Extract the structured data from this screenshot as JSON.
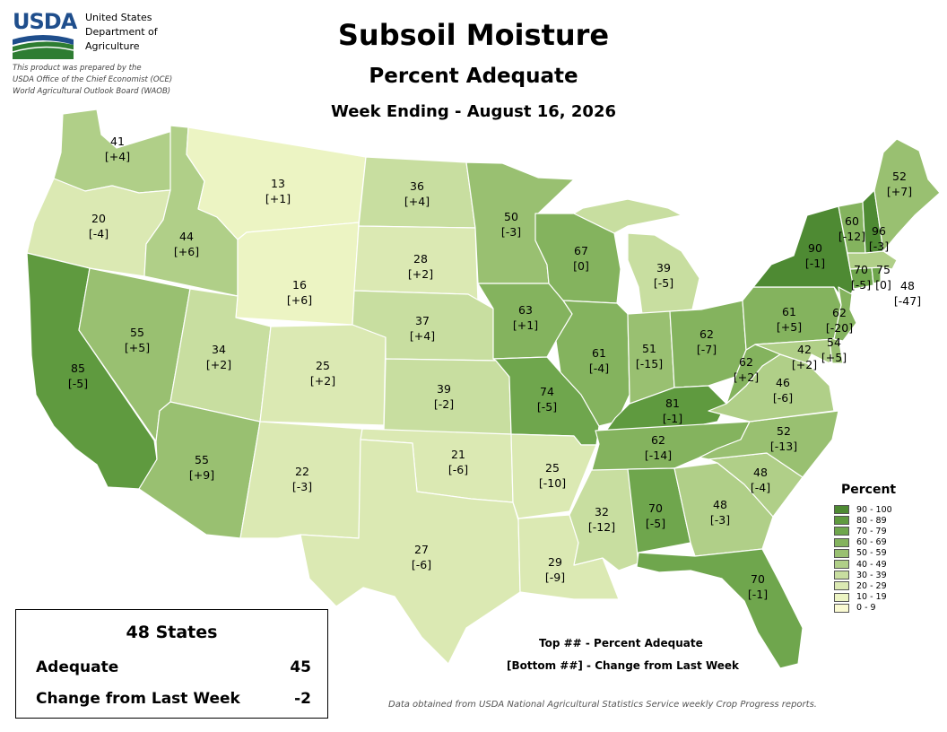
{
  "agency": {
    "logo_text": "USDA",
    "name_lines": [
      "United States",
      "Department of",
      "Agriculture"
    ],
    "prepared_lines": [
      "This product was prepared by the",
      "USDA Office of the Chief Economist (OCE)",
      "World Agricultural Outlook Board (WAOB)"
    ]
  },
  "titles": {
    "main": "Subsoil Moisture",
    "subtitle": "Percent Adequate",
    "week": "Week Ending - August 16, 2026"
  },
  "legend": {
    "title": "Percent",
    "bins": [
      {
        "label": "90 - 100",
        "color": "#4e8a33"
      },
      {
        "label": "80 - 89",
        "color": "#5f9a3f"
      },
      {
        "label": "70 - 79",
        "color": "#6fa64d"
      },
      {
        "label": "60 - 69",
        "color": "#84b35e"
      },
      {
        "label": "50 - 59",
        "color": "#99c071"
      },
      {
        "label": "40 - 49",
        "color": "#b0cf88"
      },
      {
        "label": "30 - 39",
        "color": "#c8dea0"
      },
      {
        "label": "20 - 29",
        "color": "#dbe9b3"
      },
      {
        "label": "10 - 19",
        "color": "#ecf4c3"
      },
      {
        "label": "0 - 9",
        "color": "#fafad2"
      }
    ]
  },
  "summary": {
    "title": "48 States",
    "rows": [
      {
        "label": "Adequate",
        "value": "45"
      },
      {
        "label": "Change from Last Week",
        "value": "-2"
      }
    ]
  },
  "notes": {
    "top": "Top ## - Percent Adequate",
    "bottom": "[Bottom ##] - Change from Last Week"
  },
  "source": "Data obtained from USDA National Agricultural Statistics Service weekly Crop Progress reports.",
  "states": [
    {
      "id": "WA",
      "value": "41",
      "change": "[+4]"
    },
    {
      "id": "OR",
      "value": "20",
      "change": "[-4]"
    },
    {
      "id": "CA",
      "value": "85",
      "change": "[-5]"
    },
    {
      "id": "ID",
      "value": "44",
      "change": "[+6]"
    },
    {
      "id": "NV",
      "value": "55",
      "change": "[+5]"
    },
    {
      "id": "MT",
      "value": "13",
      "change": "[+1]"
    },
    {
      "id": "WY",
      "value": "16",
      "change": "[+6]"
    },
    {
      "id": "UT",
      "value": "34",
      "change": "[+2]"
    },
    {
      "id": "AZ",
      "value": "55",
      "change": "[+9]"
    },
    {
      "id": "CO",
      "value": "25",
      "change": "[+2]"
    },
    {
      "id": "NM",
      "value": "22",
      "change": "[-3]"
    },
    {
      "id": "ND",
      "value": "36",
      "change": "[+4]"
    },
    {
      "id": "SD",
      "value": "28",
      "change": "[+2]"
    },
    {
      "id": "NE",
      "value": "37",
      "change": "[+4]"
    },
    {
      "id": "KS",
      "value": "39",
      "change": "[-2]"
    },
    {
      "id": "OK",
      "value": "21",
      "change": "[-6]"
    },
    {
      "id": "TX",
      "value": "27",
      "change": "[-6]"
    },
    {
      "id": "MN",
      "value": "50",
      "change": "[-3]"
    },
    {
      "id": "IA",
      "value": "63",
      "change": "[+1]"
    },
    {
      "id": "MO",
      "value": "74",
      "change": "[-5]"
    },
    {
      "id": "AR",
      "value": "25",
      "change": "[-10]"
    },
    {
      "id": "LA",
      "value": "29",
      "change": "[-9]"
    },
    {
      "id": "WI",
      "value": "67",
      "change": "[0]"
    },
    {
      "id": "IL",
      "value": "61",
      "change": "[-4]"
    },
    {
      "id": "MS",
      "value": "32",
      "change": "[-12]"
    },
    {
      "id": "MI",
      "value": "39",
      "change": "[-5]"
    },
    {
      "id": "IN",
      "value": "51",
      "change": "[-15]"
    },
    {
      "id": "OH",
      "value": "62",
      "change": "[-7]"
    },
    {
      "id": "KY",
      "value": "81",
      "change": "[-1]"
    },
    {
      "id": "TN",
      "value": "62",
      "change": "[-14]"
    },
    {
      "id": "AL",
      "value": "70",
      "change": "[-5]"
    },
    {
      "id": "GA",
      "value": "48",
      "change": "[-3]"
    },
    {
      "id": "FL",
      "value": "70",
      "change": "[-1]"
    },
    {
      "id": "SC",
      "value": "48",
      "change": "[-4]"
    },
    {
      "id": "NC",
      "value": "52",
      "change": "[-13]"
    },
    {
      "id": "VA",
      "value": "46",
      "change": "[-6]"
    },
    {
      "id": "WV",
      "value": "62",
      "change": "[+2]"
    },
    {
      "id": "PA",
      "value": "61",
      "change": "[+5]"
    },
    {
      "id": "NY",
      "value": "90",
      "change": "[-1]"
    },
    {
      "id": "MD",
      "value": "42",
      "change": "[+2]"
    },
    {
      "id": "DE",
      "value": "54",
      "change": "[+5]"
    },
    {
      "id": "NJ",
      "value": "62",
      "change": "[-20]"
    },
    {
      "id": "CT",
      "value": "70",
      "change": "[-5]"
    },
    {
      "id": "RI",
      "value": "75",
      "change": "[0]"
    },
    {
      "id": "MA",
      "value": "48",
      "change": "[-47]"
    },
    {
      "id": "VT",
      "value": "60",
      "change": "[-12]"
    },
    {
      "id": "NH",
      "value": "96",
      "change": "[-3]"
    },
    {
      "id": "ME",
      "value": "52",
      "change": "[+7]"
    }
  ]
}
